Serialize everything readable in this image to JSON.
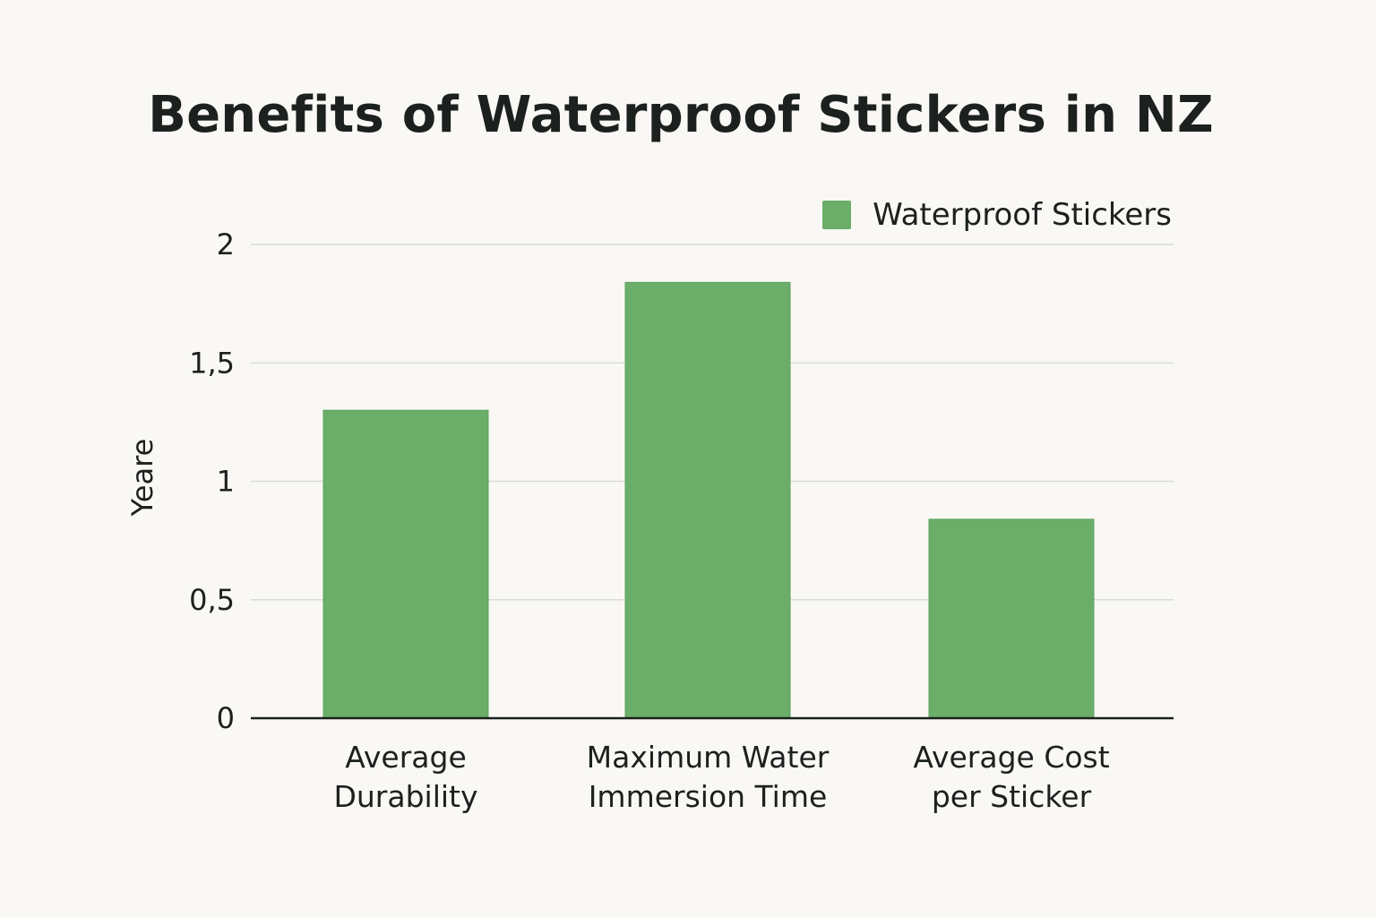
{
  "chart_data": {
    "type": "bar",
    "title": "Benefits of Waterproof Stickers in NZ",
    "xlabel": "",
    "ylabel": "Yeare",
    "categories": [
      [
        "Average",
        "Durability"
      ],
      [
        "Maximum Water",
        "Immersion Time"
      ],
      [
        "Average Cost",
        "per Sticker"
      ]
    ],
    "series": [
      {
        "name": "Waterproof Stickers",
        "color": "#6aae6a",
        "values": [
          1.3,
          1.84,
          0.84
        ]
      }
    ],
    "ylim": [
      0,
      2
    ],
    "yticks": [
      {
        "value": 0,
        "label": "0"
      },
      {
        "value": 0.5,
        "label": "0,5"
      },
      {
        "value": 1,
        "label": "1"
      },
      {
        "value": 1.5,
        "label": "1,5"
      },
      {
        "value": 2,
        "label": "2"
      }
    ],
    "grid": true,
    "legend_position": "top-right"
  }
}
